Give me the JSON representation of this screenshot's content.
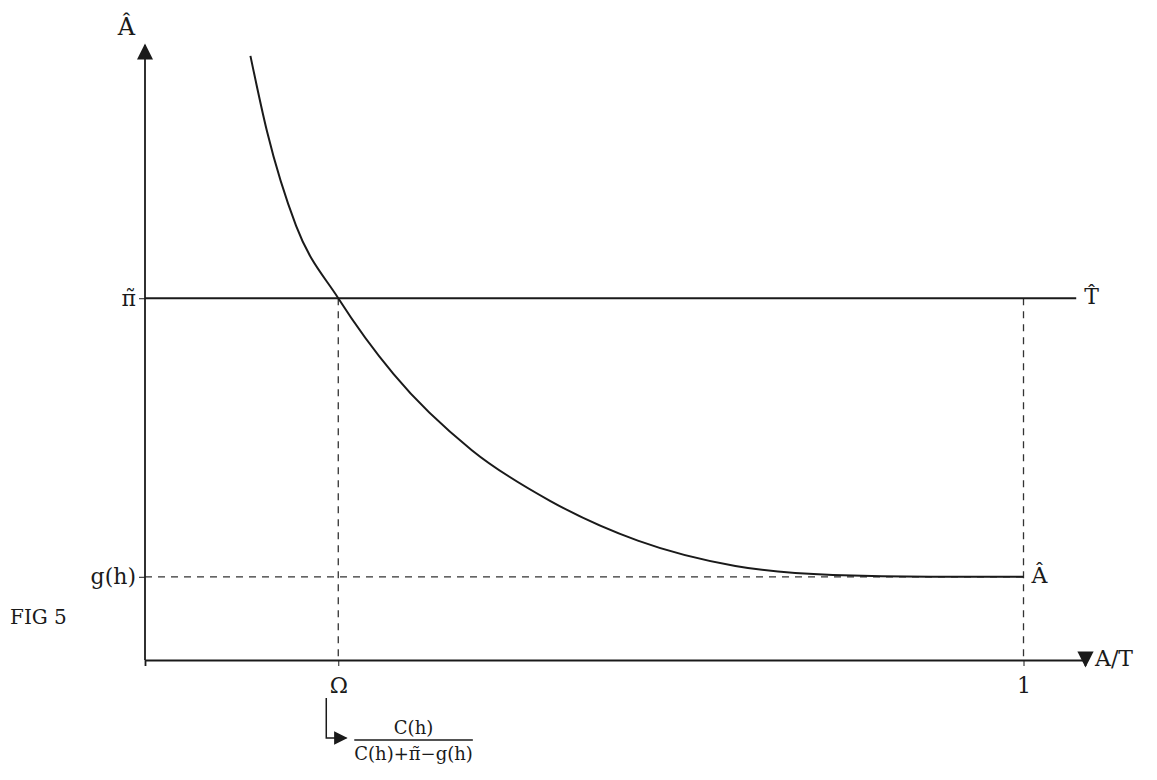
{
  "chart_data": {
    "type": "line",
    "figure_label": "FIG 5",
    "y_label": "Â",
    "x_label": "A/T",
    "xlim": [
      0,
      1.07
    ],
    "ylim": [
      0,
      1.7
    ],
    "xticks": [
      {
        "value": 0.22,
        "label": "Ω"
      },
      1
    ],
    "yticks": [
      {
        "value": 0.23,
        "label": "g(h)"
      },
      {
        "value": 1,
        "label": "π̃"
      }
    ],
    "series": [
      {
        "name": "Â",
        "color": "#1a1a1a",
        "x": [
          0.12,
          0.139,
          0.172,
          0.22,
          0.283,
          0.372,
          0.461,
          0.561,
          0.672,
          0.783,
          0.894,
          1.0
        ],
        "values": [
          1.67,
          1.46,
          1.2,
          1.0,
          0.79,
          0.58,
          0.44,
          0.33,
          0.26,
          0.235,
          0.23,
          0.23
        ]
      },
      {
        "name": "T̂",
        "color": "#1a1a1a",
        "x": [
          0,
          1.06
        ],
        "values": [
          1,
          1
        ]
      }
    ],
    "annotation": {
      "numerator": "C(h)",
      "denominator": "C(h)+π̃−g(h)"
    }
  }
}
